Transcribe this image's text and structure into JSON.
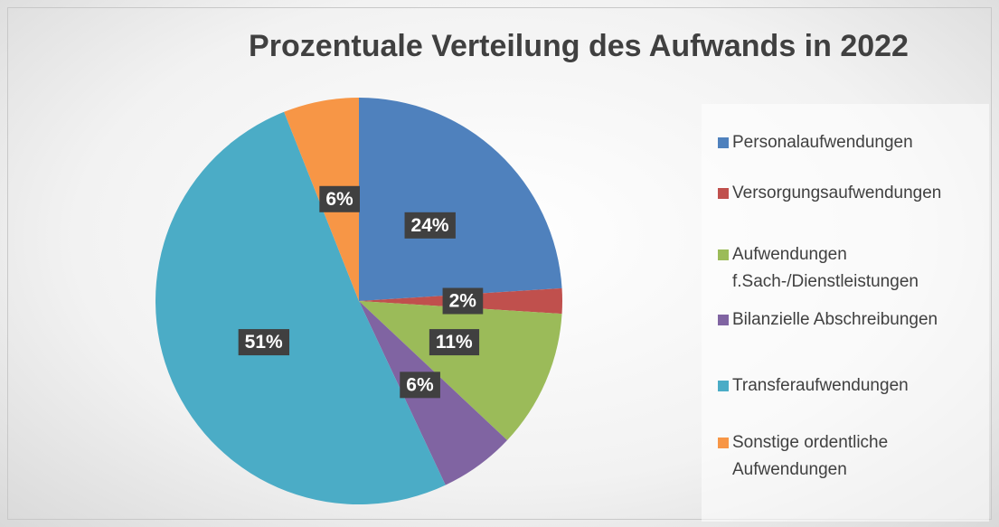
{
  "chart_data": {
    "type": "pie",
    "title": "Prozentuale Verteilung des Aufwands in 2022",
    "categories": [
      "Personalaufwendungen",
      "Versorgungsaufwendungen",
      "Aufwendungen f.Sach-/Dienstleistungen",
      "Bilanzielle Abschreibungen",
      "Transferaufwendungen",
      "Sonstige ordentliche Aufwendungen"
    ],
    "values": [
      24,
      2,
      11,
      6,
      51,
      6
    ],
    "value_labels": [
      "24%",
      "2%",
      "11%",
      "6%",
      "51%",
      "6%"
    ],
    "colors": [
      "#4f81bd",
      "#c0504d",
      "#9bbb59",
      "#8064a2",
      "#4bacc6",
      "#f79646"
    ],
    "legend": "right"
  }
}
